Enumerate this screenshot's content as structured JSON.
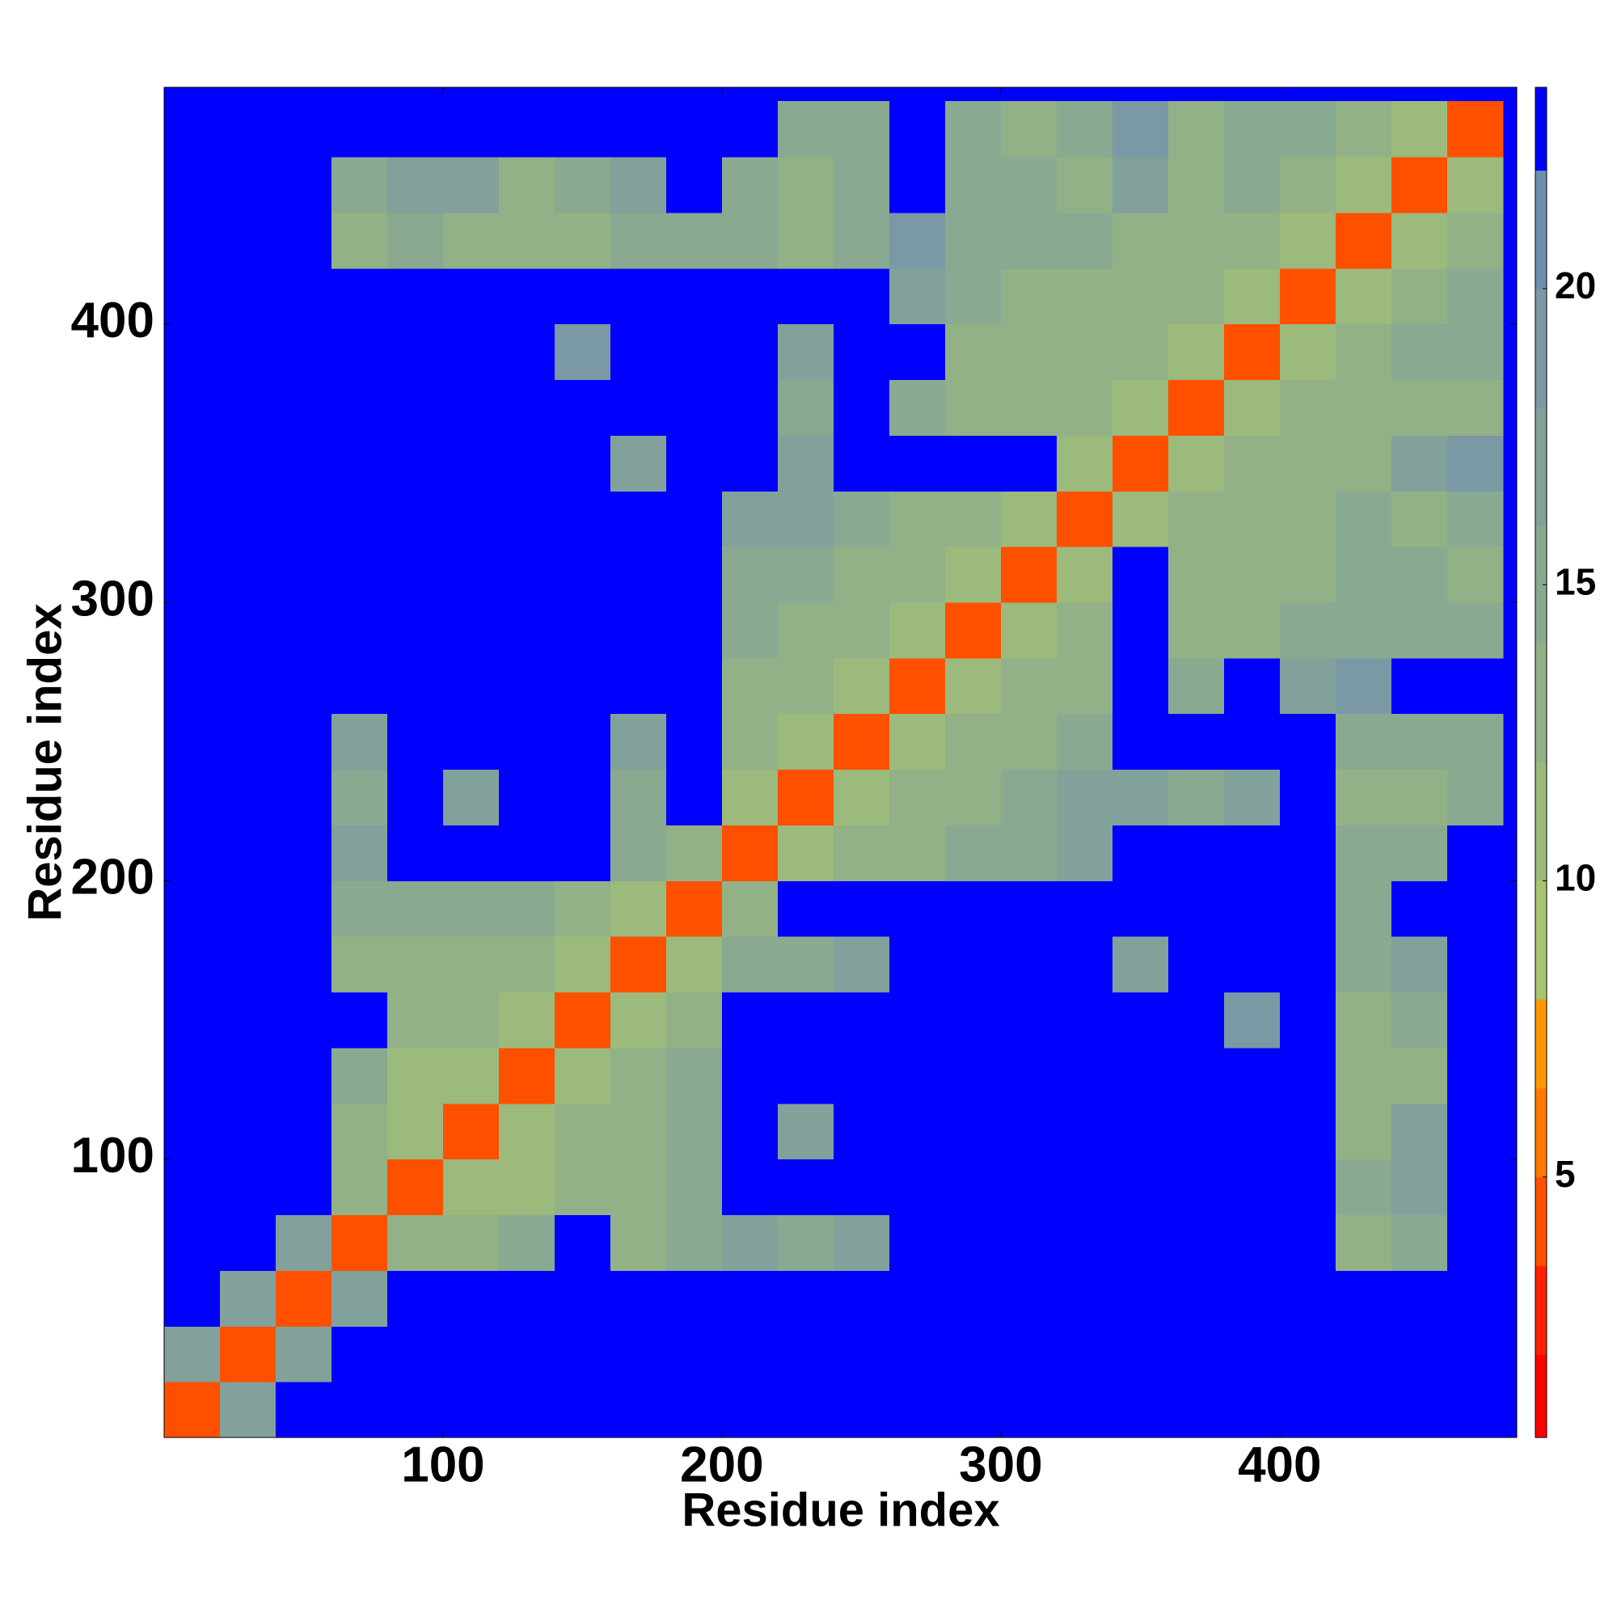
{
  "chart_data": {
    "type": "heatmap",
    "xlabel": "Residue index",
    "ylabel": "Residue index",
    "x": [
      0,
      20,
      40,
      60,
      80,
      100,
      120,
      140,
      160,
      180,
      200,
      220,
      240,
      260,
      280,
      300,
      320,
      340,
      360,
      380,
      400,
      420,
      440,
      460,
      480
    ],
    "y": [
      0,
      20,
      40,
      60,
      80,
      100,
      120,
      140,
      160,
      180,
      200,
      220,
      240,
      260,
      280,
      300,
      320,
      340,
      360,
      380,
      400,
      420,
      440,
      460,
      480
    ],
    "xlim": [
      0,
      485
    ],
    "ylim": [
      0,
      485
    ],
    "xticks": [
      100,
      200,
      300,
      400
    ],
    "yticks": [
      100,
      200,
      300,
      400
    ],
    "values": [
      [
        5,
        18,
        23,
        23,
        23,
        23,
        23,
        23,
        23,
        23,
        23,
        23,
        23,
        23,
        23,
        23,
        23,
        23,
        23,
        23,
        23,
        23,
        23,
        23
      ],
      [
        18,
        5,
        18,
        23,
        23,
        23,
        23,
        23,
        23,
        23,
        23,
        23,
        23,
        23,
        23,
        23,
        23,
        23,
        23,
        23,
        23,
        23,
        23,
        23
      ],
      [
        23,
        18,
        5,
        18,
        23,
        23,
        23,
        23,
        23,
        23,
        23,
        23,
        23,
        23,
        23,
        23,
        23,
        23,
        23,
        23,
        23,
        23,
        23,
        23
      ],
      [
        23,
        23,
        18,
        5,
        14,
        14,
        16,
        23,
        14,
        16,
        18,
        16,
        18,
        23,
        23,
        23,
        23,
        23,
        23,
        23,
        23,
        14,
        16,
        23
      ],
      [
        23,
        23,
        23,
        14,
        5,
        12,
        12,
        14,
        14,
        16,
        23,
        23,
        23,
        23,
        23,
        23,
        23,
        23,
        23,
        23,
        23,
        16,
        18,
        23
      ],
      [
        23,
        23,
        23,
        14,
        12,
        5,
        12,
        14,
        14,
        16,
        23,
        18,
        23,
        23,
        23,
        23,
        23,
        23,
        23,
        23,
        23,
        14,
        18,
        23
      ],
      [
        23,
        23,
        23,
        16,
        12,
        12,
        5,
        12,
        14,
        16,
        23,
        23,
        23,
        23,
        23,
        23,
        23,
        23,
        23,
        23,
        23,
        14,
        14,
        23
      ],
      [
        23,
        23,
        23,
        23,
        14,
        14,
        12,
        5,
        12,
        14,
        23,
        23,
        23,
        23,
        23,
        23,
        23,
        23,
        23,
        20,
        23,
        14,
        16,
        23
      ],
      [
        23,
        23,
        23,
        14,
        14,
        14,
        14,
        12,
        5,
        12,
        16,
        16,
        18,
        23,
        23,
        23,
        23,
        18,
        23,
        23,
        23,
        16,
        18,
        23
      ],
      [
        23,
        23,
        23,
        16,
        16,
        16,
        16,
        14,
        12,
        5,
        14,
        23,
        23,
        23,
        23,
        23,
        23,
        23,
        23,
        23,
        23,
        16,
        23,
        23
      ],
      [
        23,
        23,
        23,
        18,
        23,
        23,
        23,
        23,
        16,
        14,
        5,
        12,
        14,
        14,
        16,
        16,
        18,
        23,
        23,
        23,
        23,
        16,
        16,
        23
      ],
      [
        23,
        23,
        23,
        16,
        23,
        18,
        23,
        23,
        16,
        23,
        12,
        5,
        12,
        14,
        14,
        16,
        18,
        18,
        16,
        18,
        23,
        14,
        14,
        16
      ],
      [
        23,
        23,
        23,
        18,
        23,
        23,
        23,
        23,
        18,
        23,
        14,
        12,
        5,
        12,
        14,
        14,
        16,
        23,
        23,
        23,
        23,
        16,
        16,
        16
      ],
      [
        23,
        23,
        23,
        23,
        23,
        23,
        23,
        23,
        23,
        23,
        14,
        14,
        12,
        5,
        12,
        14,
        14,
        23,
        16,
        23,
        18,
        20,
        23,
        23
      ],
      [
        23,
        23,
        23,
        23,
        23,
        23,
        23,
        23,
        23,
        23,
        16,
        14,
        14,
        12,
        5,
        12,
        14,
        23,
        14,
        14,
        16,
        16,
        16,
        16
      ],
      [
        23,
        23,
        23,
        23,
        23,
        23,
        23,
        23,
        23,
        23,
        16,
        16,
        14,
        14,
        12,
        5,
        12,
        23,
        14,
        14,
        14,
        16,
        16,
        14
      ],
      [
        23,
        23,
        23,
        23,
        23,
        23,
        23,
        23,
        23,
        23,
        18,
        18,
        16,
        14,
        14,
        12,
        5,
        12,
        14,
        14,
        14,
        16,
        14,
        16
      ],
      [
        23,
        23,
        23,
        23,
        23,
        23,
        23,
        23,
        18,
        23,
        23,
        18,
        23,
        23,
        23,
        23,
        12,
        5,
        12,
        14,
        14,
        14,
        18,
        20
      ],
      [
        23,
        23,
        23,
        23,
        23,
        23,
        23,
        23,
        23,
        23,
        23,
        16,
        23,
        16,
        14,
        14,
        14,
        12,
        5,
        12,
        14,
        14,
        14,
        14
      ],
      [
        23,
        23,
        23,
        23,
        23,
        23,
        23,
        20,
        23,
        23,
        23,
        18,
        23,
        23,
        14,
        14,
        14,
        14,
        12,
        5,
        12,
        14,
        16,
        16
      ],
      [
        23,
        23,
        23,
        23,
        23,
        23,
        23,
        23,
        23,
        23,
        23,
        23,
        23,
        18,
        16,
        14,
        14,
        14,
        14,
        12,
        5,
        12,
        14,
        16
      ],
      [
        23,
        23,
        23,
        14,
        16,
        14,
        14,
        14,
        16,
        16,
        16,
        14,
        16,
        20,
        16,
        16,
        16,
        14,
        14,
        14,
        12,
        5,
        12,
        14
      ],
      [
        23,
        23,
        23,
        16,
        18,
        18,
        14,
        16,
        18,
        23,
        16,
        14,
        16,
        23,
        16,
        16,
        14,
        18,
        14,
        16,
        14,
        12,
        5,
        12
      ],
      [
        23,
        23,
        23,
        23,
        23,
        23,
        23,
        23,
        23,
        23,
        23,
        16,
        16,
        23,
        16,
        14,
        16,
        20,
        14,
        16,
        16,
        14,
        12,
        5
      ]
    ],
    "colorbar": {
      "levels": [
        0.6,
        2,
        3.5,
        5,
        6.5,
        8,
        10,
        12,
        14,
        16,
        18,
        20,
        22,
        23.4
      ],
      "colors": [
        "#ff0000",
        "#ff2200",
        "#ff5000",
        "#ff7a00",
        "#ff9600",
        "#a8c470",
        "#9cba7c",
        "#93b186",
        "#8aa991",
        "#82a19b",
        "#7a99a4",
        "#6d8fae",
        "#0000ff"
      ],
      "ticks": [
        5,
        10,
        15,
        20
      ]
    }
  }
}
